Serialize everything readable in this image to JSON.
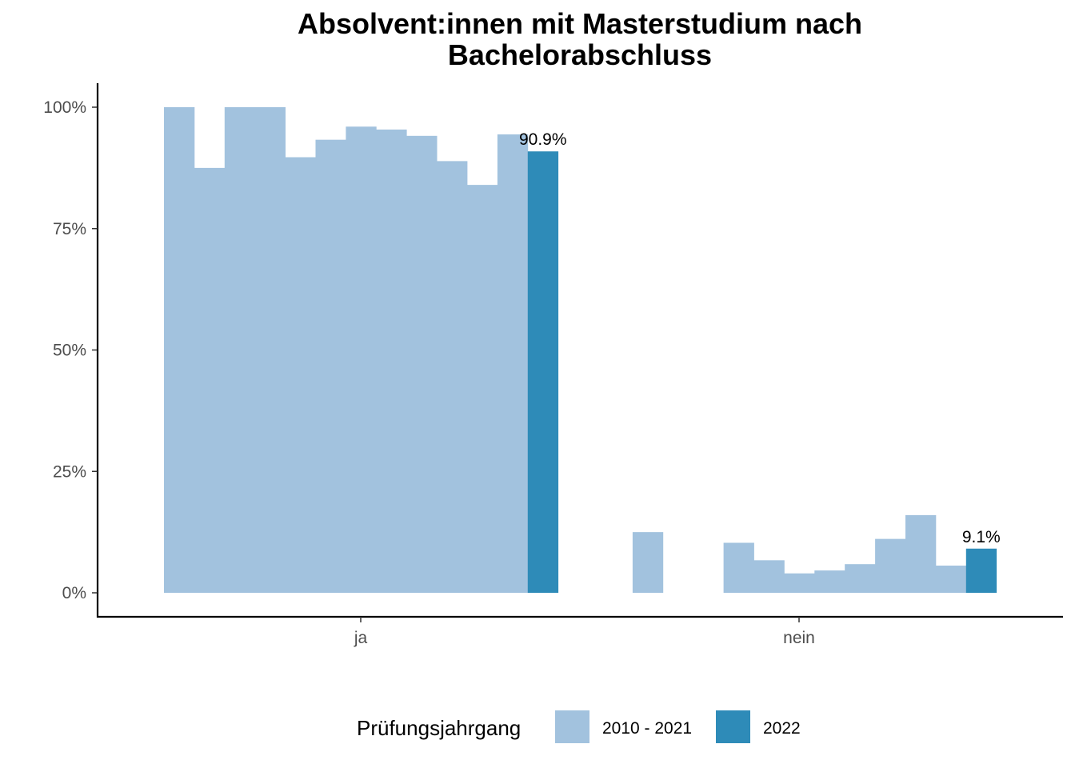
{
  "chart_data": {
    "type": "bar",
    "title_lines": [
      "Absolvent:innen mit Masterstudium nach",
      "Bachelorabschluss"
    ],
    "categories": [
      "ja",
      "nein"
    ],
    "y_ticks": [
      "0%",
      "25%",
      "50%",
      "75%",
      "100%"
    ],
    "ylim": [
      0,
      100
    ],
    "legend": {
      "title": "Prüfungsjahrgang",
      "position": "bottom",
      "entries": [
        {
          "label": "2010 - 2021",
          "color": "#a2c2de"
        },
        {
          "label": "2022",
          "color": "#2e8bb8"
        }
      ]
    },
    "series": [
      {
        "name": "2010 - 2021",
        "color": "#a2c2de",
        "values_by_category": {
          "ja": [
            100,
            87.5,
            100,
            100,
            89.7,
            93.3,
            96.0,
            95.4,
            94.1,
            88.9,
            84.0,
            94.4
          ],
          "nein": [
            null,
            12.5,
            null,
            null,
            10.3,
            6.7,
            4.0,
            4.6,
            5.9,
            11.1,
            16.0,
            5.6
          ]
        }
      },
      {
        "name": "2022",
        "color": "#2e8bb8",
        "values_by_category": {
          "ja": [
            90.9
          ],
          "nein": [
            9.1
          ]
        }
      }
    ],
    "data_labels": {
      "ja": "90.9%",
      "nein": "9.1%"
    },
    "grid": false
  }
}
